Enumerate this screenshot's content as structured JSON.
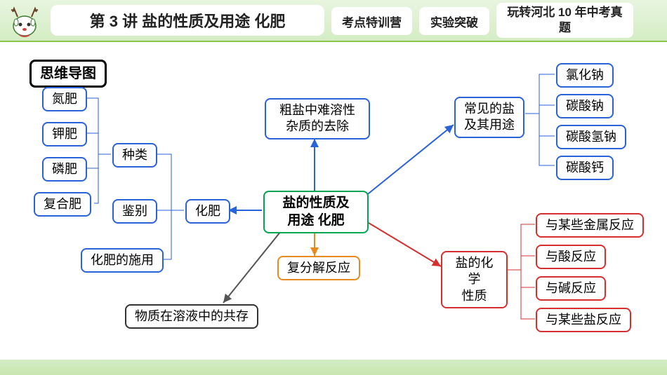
{
  "header": {
    "title": "第 3 讲 盐的性质及用途 化肥",
    "tab1": "考点特训营",
    "tab2": "实验突破",
    "tab3": "玩转河北 10 年中考真题"
  },
  "section_label": "思维导图",
  "root": "盐的性质及\n用途    化肥",
  "nodes": {
    "crude": "粗盐中难溶性\n杂质的去除",
    "decomp": "复分解反应",
    "coexist": "物质在溶液中的共存",
    "common": "常见的盐\n及其用途",
    "nacl": "氯化钠",
    "na2co3": "碳酸钠",
    "nahco3": "碳酸氢钠",
    "caco3": "碳酸钙",
    "chemprop": "盐的化学\n性质",
    "metal": "与某些金属反应",
    "acid": "与酸反应",
    "base": "与碱反应",
    "salt": "与某些盐反应",
    "fert": "化肥",
    "kind": "种类",
    "ident": "鉴别",
    "apply": "化肥的施用",
    "n": "氮肥",
    "k": "钾肥",
    "p": "磷肥",
    "comp": "复合肥"
  },
  "colors": {
    "blue": "#2962d9",
    "green": "#00a651",
    "orange": "#e88b1e",
    "red": "#d62f2f",
    "black": "#555"
  }
}
